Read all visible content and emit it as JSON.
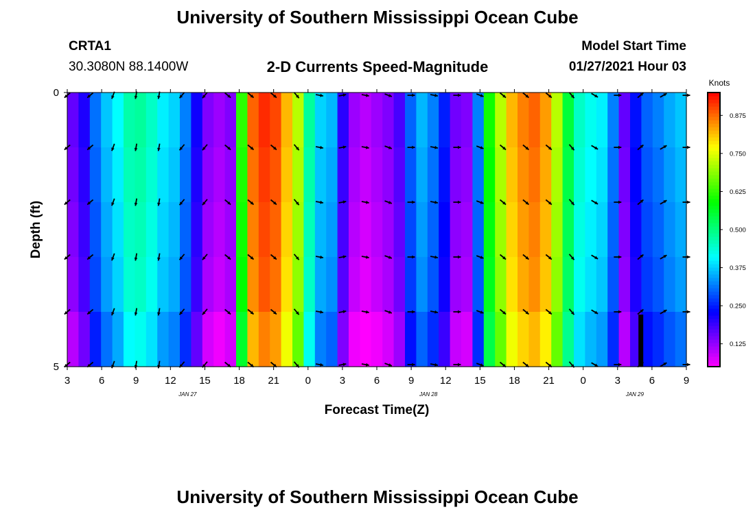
{
  "header": {
    "title": "University of Southern Mississippi Ocean Cube",
    "station_id": "CRTA1",
    "station_coords": "30.3080N 88.1400W",
    "plot_title": "2-D Currents Speed-Magnitude",
    "model_start_label": "Model Start Time",
    "model_start_value": "01/27/2021 Hour 03"
  },
  "footer": {
    "title": "University of Southern Mississippi Ocean Cube"
  },
  "chart_data": {
    "type": "heatmap",
    "title": "2-D Currents Speed-Magnitude",
    "xlabel": "Forecast Time(Z)",
    "ylabel": "Depth (ft)",
    "ylim": [
      0,
      5
    ],
    "y_ticks": [
      "0",
      "5"
    ],
    "x_ticks": [
      "3",
      "6",
      "9",
      "12",
      "15",
      "18",
      "21",
      "0",
      "3",
      "6",
      "9",
      "12",
      "15",
      "18",
      "21",
      "0",
      "3",
      "6",
      "9"
    ],
    "date_labels": [
      {
        "text": "JAN 27",
        "after_tick": 3
      },
      {
        "text": "JAN 28",
        "after_tick": 10
      },
      {
        "text": "JAN 29",
        "after_tick": 16
      }
    ],
    "colorbar": {
      "unit": "Knots",
      "range": [
        0.05,
        0.95
      ],
      "ticks": [
        "0.125",
        "0.250",
        "0.375",
        "0.500",
        "0.625",
        "0.750",
        "0.875"
      ],
      "tick_values": [
        0.125,
        0.25,
        0.375,
        0.5,
        0.625,
        0.75,
        0.875
      ]
    },
    "hours": [
      3,
      4,
      5,
      6,
      7,
      8,
      9,
      10,
      11,
      12,
      13,
      14,
      15,
      16,
      17,
      18,
      19,
      20,
      21,
      22,
      23,
      24,
      25,
      26,
      27,
      28,
      29,
      30,
      31,
      32,
      33,
      34,
      35,
      36,
      37,
      38,
      39,
      40,
      41,
      42,
      43,
      44,
      45,
      46,
      47,
      48,
      49,
      50,
      51,
      52,
      53,
      54,
      55,
      56,
      57
    ],
    "speed_knots": [
      0.16,
      0.21,
      0.31,
      0.37,
      0.41,
      0.47,
      0.48,
      0.45,
      0.4,
      0.38,
      0.32,
      0.22,
      0.14,
      0.12,
      0.14,
      0.62,
      0.88,
      0.92,
      0.9,
      0.82,
      0.72,
      0.48,
      0.38,
      0.36,
      0.2,
      0.12,
      0.1,
      0.12,
      0.14,
      0.18,
      0.3,
      0.36,
      0.32,
      0.25,
      0.15,
      0.14,
      0.32,
      0.6,
      0.72,
      0.82,
      0.86,
      0.88,
      0.84,
      0.72,
      0.55,
      0.45,
      0.42,
      0.4,
      0.32,
      0.16,
      0.24,
      0.3,
      0.32,
      0.35,
      0.37
    ],
    "layer_offsets": [
      0.0,
      -0.01,
      -0.02,
      -0.03,
      -0.06
    ],
    "arrow_rows": 6,
    "arrow_hours": [
      3,
      5,
      7,
      9,
      11,
      13,
      15,
      17,
      19,
      21,
      23,
      25,
      27,
      29,
      31,
      33,
      35,
      37,
      39,
      41,
      43,
      45,
      47,
      49,
      51,
      53,
      55,
      57
    ],
    "arrow_direction_deg": [
      230,
      230,
      200,
      190,
      190,
      220,
      220,
      130,
      130,
      130,
      140,
      100,
      80,
      100,
      110,
      90,
      100,
      90,
      110,
      130,
      130,
      130,
      140,
      120,
      90,
      50,
      60,
      90
    ]
  }
}
